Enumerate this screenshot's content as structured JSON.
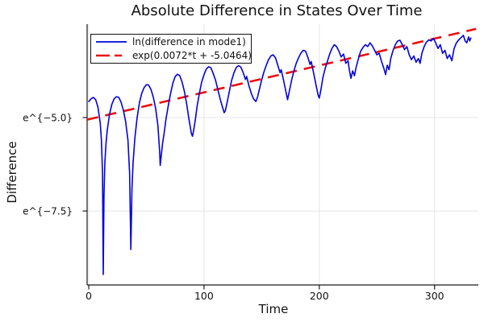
{
  "accent_colors": {
    "series1_blue": "#0202dd",
    "series2_red": "#ee0c0c",
    "grid": "#e4e4e4",
    "spine": "#1a1a1a",
    "text": "#111111"
  },
  "chart_data": {
    "type": "line",
    "title": "Absolute Difference in States Over Time",
    "xlabel": "Time",
    "ylabel": "Difference",
    "grid": true,
    "legend_position": "top-left",
    "x_axis": {
      "min": -1.4,
      "max": 338,
      "ticks": [
        {
          "value": 0,
          "label": "0"
        },
        {
          "value": 100,
          "label": "100"
        },
        {
          "value": 200,
          "label": "200"
        },
        {
          "value": 300,
          "label": "300"
        }
      ]
    },
    "y_axis": {
      "min": -9.48,
      "max": -2.5,
      "scale": "log(e)",
      "ticks": [
        {
          "value": -5.0,
          "label": "e^{−5.0}"
        },
        {
          "value": -7.5,
          "label": "e^{−7.5}"
        }
      ]
    },
    "series": [
      {
        "name": "ln(difference in mode1)",
        "color": "#0202dd",
        "style": "solid",
        "points": [
          [
            0,
            -4.57
          ],
          [
            2,
            -4.5
          ],
          [
            4,
            -4.46
          ],
          [
            6,
            -4.52
          ],
          [
            8,
            -4.72
          ],
          [
            10,
            -5.15
          ],
          [
            11,
            -5.6
          ],
          [
            12,
            -6.5
          ],
          [
            12.6,
            -9.2
          ],
          [
            13.2,
            -7.1
          ],
          [
            14,
            -6.2
          ],
          [
            15,
            -5.7
          ],
          [
            16,
            -5.35
          ],
          [
            18,
            -4.92
          ],
          [
            20,
            -4.65
          ],
          [
            22,
            -4.5
          ],
          [
            24,
            -4.44
          ],
          [
            26,
            -4.46
          ],
          [
            28,
            -4.58
          ],
          [
            30,
            -4.8
          ],
          [
            32,
            -5.1
          ],
          [
            34,
            -5.6
          ],
          [
            35.5,
            -6.5
          ],
          [
            36.5,
            -8.53
          ],
          [
            37.5,
            -6.9
          ],
          [
            38.5,
            -6.2
          ],
          [
            40,
            -5.55
          ],
          [
            42,
            -5.0
          ],
          [
            44,
            -4.6
          ],
          [
            46,
            -4.35
          ],
          [
            48,
            -4.2
          ],
          [
            50,
            -4.12
          ],
          [
            52,
            -4.13
          ],
          [
            54,
            -4.25
          ],
          [
            56,
            -4.45
          ],
          [
            58,
            -4.75
          ],
          [
            60,
            -5.2
          ],
          [
            61.5,
            -5.9
          ],
          [
            62,
            -6.28
          ],
          [
            63,
            -6.0
          ],
          [
            64,
            -5.7
          ],
          [
            65.5,
            -5.4
          ],
          [
            67,
            -5.05
          ],
          [
            69,
            -4.68
          ],
          [
            71,
            -4.35
          ],
          [
            73,
            -4.08
          ],
          [
            75,
            -3.9
          ],
          [
            77,
            -3.84
          ],
          [
            79,
            -3.88
          ],
          [
            81,
            -4.05
          ],
          [
            83,
            -4.3
          ],
          [
            85,
            -4.65
          ],
          [
            87,
            -5.05
          ],
          [
            89,
            -5.42
          ],
          [
            90,
            -5.5
          ],
          [
            91,
            -5.35
          ],
          [
            92.5,
            -5.05
          ],
          [
            94,
            -4.7
          ],
          [
            96,
            -4.35
          ],
          [
            98,
            -4.05
          ],
          [
            100,
            -3.85
          ],
          [
            102,
            -3.7
          ],
          [
            104,
            -3.64
          ],
          [
            106,
            -3.67
          ],
          [
            108,
            -3.82
          ],
          [
            110,
            -4.0
          ],
          [
            112,
            -4.25
          ],
          [
            114,
            -4.5
          ],
          [
            116,
            -4.72
          ],
          [
            117.5,
            -4.87
          ],
          [
            118.5,
            -4.82
          ],
          [
            120,
            -4.6
          ],
          [
            122,
            -4.3
          ],
          [
            124,
            -4.0
          ],
          [
            126,
            -3.8
          ],
          [
            128,
            -3.66
          ],
          [
            130,
            -3.61
          ],
          [
            132,
            -3.65
          ],
          [
            134,
            -3.8
          ],
          [
            136,
            -3.98
          ],
          [
            137,
            -3.9
          ],
          [
            139,
            -4.15
          ],
          [
            141,
            -4.35
          ],
          [
            143,
            -4.5
          ],
          [
            145,
            -4.57
          ],
          [
            146.5,
            -4.45
          ],
          [
            148,
            -4.25
          ],
          [
            150,
            -4.0
          ],
          [
            152,
            -3.78
          ],
          [
            154,
            -3.6
          ],
          [
            156,
            -3.45
          ],
          [
            158,
            -3.35
          ],
          [
            160,
            -3.32
          ],
          [
            162,
            -3.4
          ],
          [
            164,
            -3.6
          ],
          [
            166,
            -3.8
          ],
          [
            167,
            -3.72
          ],
          [
            169,
            -4.0
          ],
          [
            171,
            -4.3
          ],
          [
            172.5,
            -4.52
          ],
          [
            174,
            -4.3
          ],
          [
            176,
            -4.0
          ],
          [
            178,
            -3.75
          ],
          [
            180,
            -3.55
          ],
          [
            182,
            -3.4
          ],
          [
            184,
            -3.28
          ],
          [
            186,
            -3.2
          ],
          [
            188,
            -3.22
          ],
          [
            190,
            -3.38
          ],
          [
            192,
            -3.58
          ],
          [
            193,
            -3.5
          ],
          [
            195,
            -3.8
          ],
          [
            197,
            -4.1
          ],
          [
            199,
            -4.4
          ],
          [
            200,
            -4.48
          ],
          [
            201.5,
            -4.25
          ],
          [
            203,
            -3.95
          ],
          [
            205,
            -3.7
          ],
          [
            207,
            -3.5
          ],
          [
            209,
            -3.3
          ],
          [
            211,
            -3.15
          ],
          [
            213,
            -3.05
          ],
          [
            215,
            -3.1
          ],
          [
            217,
            -3.22
          ],
          [
            219,
            -3.38
          ],
          [
            221,
            -3.3
          ],
          [
            223,
            -3.55
          ],
          [
            225,
            -3.48
          ],
          [
            226,
            -3.72
          ],
          [
            227.5,
            -3.95
          ],
          [
            229,
            -3.75
          ],
          [
            230.5,
            -3.88
          ],
          [
            232,
            -3.65
          ],
          [
            234,
            -3.42
          ],
          [
            236,
            -3.22
          ],
          [
            238,
            -3.12
          ],
          [
            240,
            -3.05
          ],
          [
            242,
            -3.1
          ],
          [
            244,
            -3.0
          ],
          [
            246,
            -3.08
          ],
          [
            248,
            -3.2
          ],
          [
            250,
            -3.32
          ],
          [
            252,
            -3.28
          ],
          [
            254,
            -3.5
          ],
          [
            256,
            -3.68
          ],
          [
            257.5,
            -3.85
          ],
          [
            259,
            -3.6
          ],
          [
            260.5,
            -3.72
          ],
          [
            262,
            -3.42
          ],
          [
            264,
            -3.2
          ],
          [
            266,
            -3.05
          ],
          [
            268,
            -2.95
          ],
          [
            270,
            -2.93
          ],
          [
            272,
            -3.05
          ],
          [
            274,
            -3.18
          ],
          [
            276,
            -3.1
          ],
          [
            278,
            -3.32
          ],
          [
            280,
            -3.45
          ],
          [
            282,
            -3.35
          ],
          [
            284,
            -3.52
          ],
          [
            286,
            -3.42
          ],
          [
            287.5,
            -3.55
          ],
          [
            289,
            -3.28
          ],
          [
            291,
            -3.1
          ],
          [
            293,
            -2.98
          ],
          [
            295,
            -2.92
          ],
          [
            297,
            -2.95
          ],
          [
            299,
            -2.88
          ],
          [
            301,
            -3.0
          ],
          [
            303,
            -3.15
          ],
          [
            305,
            -3.05
          ],
          [
            307,
            -3.28
          ],
          [
            309,
            -3.2
          ],
          [
            311,
            -3.42
          ],
          [
            313,
            -3.32
          ],
          [
            315,
            -3.48
          ],
          [
            317,
            -3.15
          ],
          [
            319,
            -3.0
          ],
          [
            321,
            -2.92
          ],
          [
            323,
            -2.86
          ],
          [
            325,
            -2.8
          ],
          [
            326.5,
            -2.95
          ],
          [
            328,
            -3.0
          ],
          [
            329.5,
            -2.84
          ],
          [
            330.5,
            -2.95
          ],
          [
            331.5,
            -2.87
          ]
        ]
      },
      {
        "name": "exp(0.0072*t + -5.0464)",
        "color": "#ee0c0c",
        "style": "dashed",
        "slope": 0.0072,
        "intercept": -5.0464,
        "t_range": [
          -1.4,
          336
        ]
      }
    ]
  }
}
